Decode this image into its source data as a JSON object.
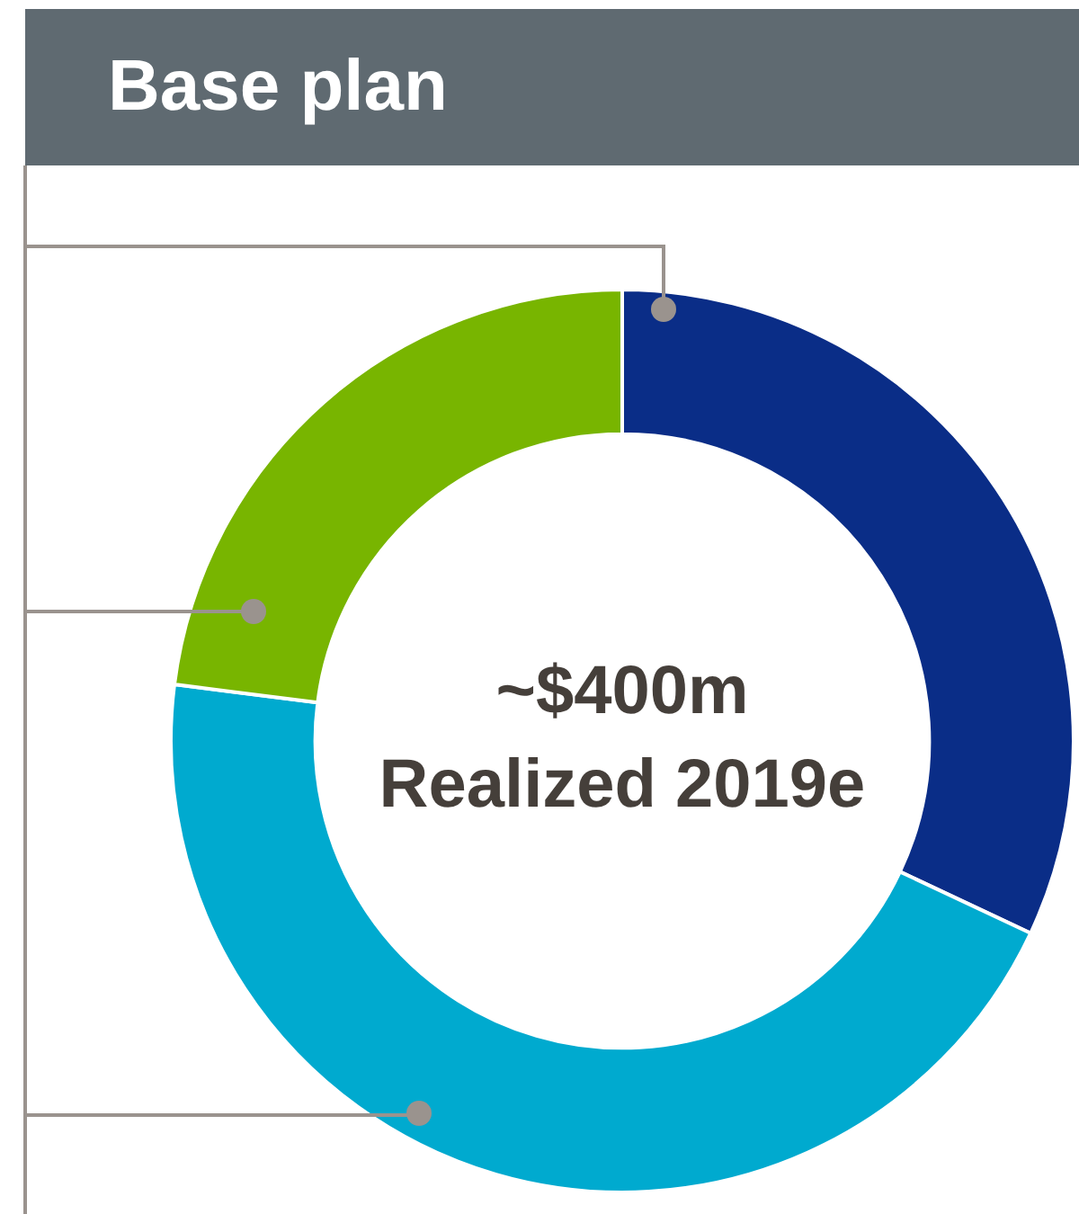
{
  "chart_data": {
    "type": "donut",
    "title": "Base plan",
    "categories": [
      null,
      null,
      null
    ],
    "values": [
      32,
      45,
      23
    ],
    "colors": [
      "#0a2d87",
      "#00aacf",
      "#78b500"
    ],
    "annotations": [
      "~$400m",
      "Realized 2019e"
    ],
    "legend": false
  }
}
